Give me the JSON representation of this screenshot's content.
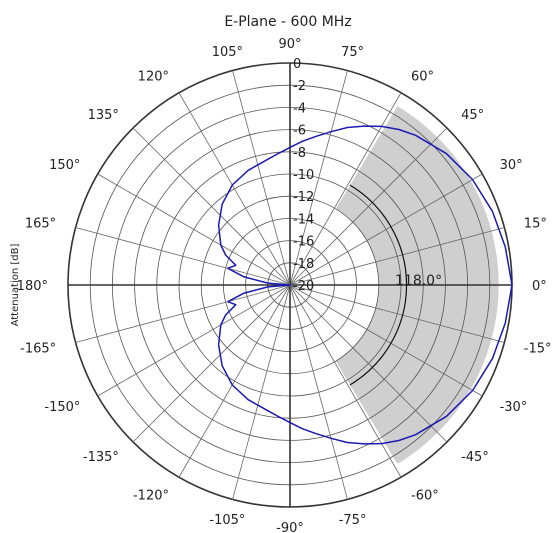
{
  "chart_data": {
    "type": "polar",
    "title": "E-Plane - 600 MHz",
    "ylabel": "Attenuation [dB]",
    "r_range": [
      -20,
      0
    ],
    "r_tick_labels": [
      "0",
      "-2",
      "-4",
      "-6",
      "-8",
      "-10",
      "-12",
      "-14",
      "-16",
      "-18",
      "-20"
    ],
    "r_ticks": [
      0,
      -2,
      -4,
      -6,
      -8,
      -10,
      -12,
      -14,
      -16,
      -18,
      -20
    ],
    "angle_tick_labels": [
      "0°",
      "15°",
      "30°",
      "45°",
      "60°",
      "75°",
      "90°",
      "105°",
      "120°",
      "135°",
      "150°",
      "165°",
      "180°",
      "-165°",
      "-150°",
      "-135°",
      "-120°",
      "-105°",
      "-90°",
      "-75°",
      "-60°",
      "-45°",
      "-30°",
      "-15°"
    ],
    "angle_ticks_deg": [
      0,
      15,
      30,
      45,
      60,
      75,
      90,
      105,
      120,
      135,
      150,
      165,
      180,
      -165,
      -150,
      -135,
      -120,
      -105,
      -90,
      -75,
      -60,
      -45,
      -30,
      -15
    ],
    "grid": true,
    "beamwidth": {
      "label": "118.0°",
      "value_deg": 118.0,
      "from_deg": -59,
      "to_deg": 59
    },
    "series": [
      {
        "color": "#1a1ab4",
        "angles_deg": [
          0,
          10,
          20,
          30,
          40,
          50,
          55,
          60,
          65,
          70,
          75,
          80,
          85,
          90,
          95,
          100,
          110,
          120,
          130,
          140,
          150,
          155,
          160,
          165,
          170,
          175,
          180,
          -175,
          -170,
          -165,
          -160,
          -155,
          -150,
          -140,
          -130,
          -120,
          -110,
          -100,
          -95,
          -90,
          -85,
          -80,
          -75,
          -70,
          -65,
          -60,
          -55,
          -50,
          -40,
          -30,
          -20,
          -10
        ],
        "values_db": [
          0.0,
          -0.3,
          -0.6,
          -1.0,
          -1.6,
          -2.4,
          -2.9,
          -3.5,
          -4.2,
          -4.9,
          -5.7,
          -6.4,
          -7.0,
          -7.6,
          -8.1,
          -8.5,
          -9.0,
          -9.6,
          -10.5,
          -11.6,
          -12.8,
          -13.6,
          -14.8,
          -14.2,
          -15.8,
          -18.0,
          -20.0,
          -18.0,
          -15.8,
          -14.2,
          -14.8,
          -13.6,
          -12.8,
          -11.6,
          -10.5,
          -9.6,
          -9.0,
          -8.5,
          -8.1,
          -7.6,
          -7.0,
          -6.4,
          -5.7,
          -4.9,
          -4.2,
          -3.5,
          -2.9,
          -2.4,
          -1.6,
          -1.0,
          -0.6,
          -0.3
        ]
      }
    ]
  }
}
